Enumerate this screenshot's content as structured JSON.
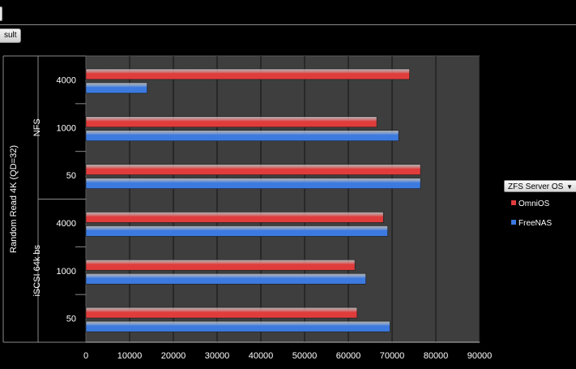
{
  "ui": {
    "result_button": "sult",
    "legend_dropdown": "ZFS Server OS"
  },
  "chart_data": {
    "type": "bar",
    "orientation": "horizontal",
    "ylabel": "Random Read 4K (QD=32)",
    "groups": [
      {
        "label": "NFS",
        "categories": [
          "4000",
          "1000",
          "50"
        ]
      },
      {
        "label": "iSCSI 64k bs",
        "categories": [
          "4000",
          "1000",
          "50"
        ]
      }
    ],
    "categories": [
      "NFS 4000",
      "NFS 1000",
      "NFS 50",
      "iSCSI 64k bs 4000",
      "iSCSI 64k bs 1000",
      "iSCSI 64k bs 50"
    ],
    "series": [
      {
        "name": "OmniOS",
        "color": "#e03c3c",
        "values": [
          74000,
          66500,
          76500,
          68000,
          61500,
          62000
        ]
      },
      {
        "name": "FreeNAS",
        "color": "#3c7ae0",
        "values": [
          14000,
          71500,
          76500,
          69000,
          64000,
          69500
        ]
      }
    ],
    "xlim": [
      0,
      90000
    ],
    "xticks": [
      0,
      10000,
      20000,
      30000,
      40000,
      50000,
      60000,
      70000,
      80000,
      90000
    ],
    "grid": true,
    "legend": "right"
  }
}
